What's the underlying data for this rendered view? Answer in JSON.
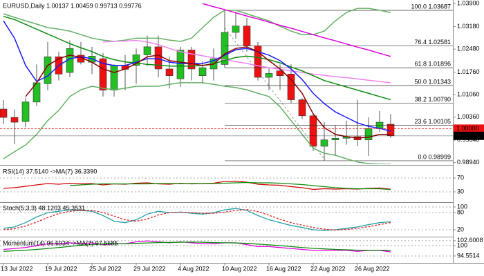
{
  "chart_data": [
    {
      "type": "candlestick",
      "title": "EURUSD,Daily  1.00137 1.00459 0.99713 0.99776",
      "categories": [
        "13 Jul 2022",
        null,
        null,
        null,
        "19 Jul 2022",
        null,
        null,
        null,
        "25 Jul 2022",
        null,
        null,
        null,
        "29 Jul 2022",
        null,
        null,
        null,
        "4 Aug 2022",
        null,
        null,
        null,
        "10 Aug 2022",
        null,
        null,
        null,
        "16 Aug 2022",
        null,
        null,
        null,
        "22 Aug 2022",
        null,
        null,
        null,
        "26 Aug 2022",
        null,
        null,
        null
      ],
      "open": [
        1.0061,
        1.0035,
        1.0022,
        1.0083,
        1.014,
        1.0224,
        1.0175,
        1.0229,
        1.0207,
        1.0218,
        1.012,
        1.0197,
        1.0197,
        1.023,
        1.0255,
        1.0186,
        1.0155,
        1.0245,
        1.0165,
        1.0186,
        1.02,
        1.03,
        1.032,
        1.0258,
        1.016,
        1.018,
        1.017,
        1.009,
        1.004,
        0.9945,
        0.9965,
        0.997,
        0.9975,
        0.9965,
        1.0,
        1.00137
      ],
      "high": [
        1.0089,
        1.006,
        1.0096,
        1.02,
        1.027,
        1.024,
        1.0275,
        1.027,
        1.0255,
        1.0235,
        1.02,
        1.023,
        1.025,
        1.029,
        1.029,
        1.0225,
        1.0255,
        1.0255,
        1.021,
        1.025,
        1.0368,
        1.0365,
        1.0345,
        1.027,
        1.019,
        1.02,
        1.02,
        1.0095,
        1.0045,
        1.002,
        1.001,
        1.0025,
        1.009,
        1.0035,
        1.0055,
        1.00459
      ],
      "low": [
        1.0014,
        0.9952,
        1.0005,
        1.007,
        1.012,
        1.015,
        1.016,
        1.02,
        1.017,
        1.01,
        1.01,
        1.012,
        1.014,
        1.0195,
        1.016,
        1.0125,
        1.013,
        1.015,
        1.014,
        1.015,
        1.019,
        1.028,
        1.024,
        1.015,
        1.012,
        1.012,
        1.008,
        1.003,
        0.993,
        0.99,
        0.9915,
        0.995,
        0.9945,
        0.9915,
        0.999,
        0.99713
      ],
      "close": [
        1.0035,
        1.002,
        1.0083,
        1.0143,
        1.0224,
        1.017,
        1.025,
        1.0207,
        1.0226,
        1.012,
        1.0197,
        1.0185,
        1.023,
        1.0255,
        1.0186,
        1.0165,
        1.0245,
        1.0186,
        1.019,
        1.0218,
        1.03,
        1.032,
        1.0258,
        1.016,
        1.0172,
        1.0165,
        1.009,
        1.004,
        0.9945,
        0.9965,
        0.997,
        0.9975,
        0.9965,
        1.0,
        1.002,
        0.99776
      ],
      "up_color": "#22c022",
      "down_color": "#ee1111",
      "series": [
        {
          "color": "#62b062",
          "values": [
            1.0358,
            1.0347,
            1.0336,
            1.0326,
            1.0315,
            1.031,
            1.0304,
            1.0293,
            1.0282,
            1.0276,
            1.0272,
            1.0276,
            1.0282,
            1.0282,
            1.0282,
            1.0276,
            1.0272,
            1.0282,
            1.0315,
            1.0347,
            1.0369,
            1.0369,
            1.0358,
            1.0347,
            1.0336,
            1.0319,
            1.0304,
            1.0293,
            1.0293,
            1.0304,
            1.0336,
            1.0362,
            1.0375,
            1.0375,
            1.0369,
            1.0362
          ]
        },
        {
          "color": "#62b062",
          "values": [
            0.9906,
            0.9928,
            0.9949,
            0.9982,
            1.0025,
            1.0057,
            1.01,
            1.0121,
            1.0132,
            1.0126,
            1.0121,
            1.0126,
            1.0132,
            1.0132,
            1.0132,
            1.0138,
            1.0143,
            1.0143,
            1.0143,
            1.0138,
            1.0132,
            1.0128,
            1.0121,
            1.011,
            1.01,
            1.0068,
            1.0025,
            0.9982,
            0.9939,
            0.9923,
            0.9917,
            0.9906,
            0.9896,
            0.9891,
            0.9889,
            0.9889
          ]
        },
        {
          "color": "#ee82ee",
          "values": [
            null,
            null,
            null,
            null,
            null,
            null,
            null,
            null,
            null,
            1.027,
            1.0272,
            1.0273,
            1.0275,
            1.027,
            1.0262,
            1.025,
            1.024,
            1.0233,
            1.0227,
            1.0221,
            1.0215,
            1.0209,
            1.0203,
            1.0196,
            1.019,
            1.0185,
            1.018,
            1.0175,
            1.017,
            1.0166,
            1.0162,
            1.0159,
            1.0155,
            1.0151,
            1.0147,
            1.0143
          ]
        },
        {
          "color": "#dd00dd",
          "values": [
            null,
            null,
            null,
            null,
            null,
            null,
            null,
            null,
            null,
            null,
            null,
            null,
            null,
            null,
            null,
            null,
            null,
            null,
            1.039,
            1.038,
            1.0371,
            1.0361,
            1.0351,
            1.0342,
            1.0332,
            1.0322,
            1.0313,
            1.0303,
            1.0293,
            1.0283,
            1.0274,
            1.0264,
            1.0254,
            1.0245,
            1.0235,
            1.0225
          ]
        },
        {
          "color": "#0b8a0b",
          "values": [
            1.035,
            1.034,
            1.0325,
            1.031,
            1.0295,
            1.028,
            1.0265,
            1.0252,
            1.024,
            1.0225,
            1.0215,
            1.0208,
            1.0205,
            1.02,
            1.0198,
            1.0195,
            1.0195,
            1.0195,
            1.0197,
            1.0203,
            1.0212,
            1.0222,
            1.0226,
            1.0222,
            1.0215,
            1.0205,
            1.0192,
            1.018,
            1.0165,
            1.015,
            1.014,
            1.013,
            1.012,
            1.011,
            1.01,
            1.009
          ]
        },
        {
          "color": "#1a1aff",
          "values": [
            1.0336,
            1.0282,
            1.0197,
            1.0147,
            1.0164,
            1.0197,
            1.0218,
            1.0224,
            1.0218,
            1.0203,
            1.0197,
            1.0197,
            1.0207,
            1.0218,
            1.0218,
            1.0207,
            1.0203,
            1.0203,
            1.0203,
            1.0212,
            1.0229,
            1.0246,
            1.025,
            1.024,
            1.0229,
            1.0212,
            1.0186,
            1.0153,
            1.011,
            1.0078,
            1.0052,
            1.0035,
            1.0018,
            1.0007,
            1.0001,
            0.9992
          ]
        },
        {
          "color": "#8b0000",
          "values": [
            null,
            null,
            1.01,
            1.0143,
            1.0197,
            1.0218,
            1.0229,
            1.0222,
            1.0207,
            1.0186,
            1.0175,
            1.0186,
            1.0203,
            1.0224,
            1.0229,
            1.0212,
            1.0207,
            1.0203,
            1.0197,
            1.0201,
            1.0233,
            1.025,
            1.0255,
            1.024,
            1.0212,
            1.0186,
            1.0153,
            1.011,
            1.0046,
            1.0003,
            0.9982,
            0.9975,
            0.9971,
            0.9973,
            0.9982,
            0.9982
          ]
        }
      ],
      "fib_levels": [
        {
          "value": 1.03687,
          "label": "100.0 1.03687"
        },
        {
          "value": 1.02581,
          "label": "76.4 1.02581"
        },
        {
          "value": 1.01896,
          "label": "61.8 1.01896"
        },
        {
          "value": 1.01343,
          "label": "50.0 1.01343"
        },
        {
          "value": 1.0079,
          "label": "38.2 1.00790"
        },
        {
          "value": 1.00105,
          "label": "23.6 1.00105"
        },
        {
          "value": 0.98999,
          "label": "0.0 0.98999"
        }
      ],
      "price_marks": [
        {
          "value": 1.0,
          "label": "1.00000",
          "color": "#ee1111"
        },
        {
          "value": 0.99776,
          "label": "0.99776",
          "color": "#000000"
        }
      ],
      "ylim": [
        0.9889,
        1.0401
      ],
      "yticks": [
        {
          "value": 1.039,
          "label": "1.03900"
        },
        {
          "value": 1.0318,
          "label": "1.03180"
        },
        {
          "value": 1.0248,
          "label": "1.02480"
        },
        {
          "value": 1.0176,
          "label": "1.01760"
        },
        {
          "value": 1.0106,
          "label": "1.01060"
        },
        {
          "value": 1.0036,
          "label": "1.00360"
        },
        {
          "value": 0.9964,
          "label": "0.99640"
        },
        {
          "value": 0.9894,
          "label": "0.98940"
        }
      ]
    },
    {
      "type": "line",
      "title": "RSI(14) 37.5140 ->MA(7) 36.3390",
      "ylim": [
        2,
        106
      ],
      "yticks": [
        70,
        30
      ],
      "series": [
        {
          "color": "#cc0000",
          "values": [
            40,
            42,
            46,
            50,
            54,
            52,
            55,
            53,
            54,
            50,
            53,
            52,
            55,
            56,
            53,
            52,
            55,
            53,
            54,
            55,
            60,
            61,
            58,
            52,
            50,
            49,
            45,
            42,
            37,
            39,
            38,
            39,
            38,
            40,
            41,
            37.5
          ]
        },
        {
          "color": "#0b8a0b",
          "values": [
            null,
            null,
            null,
            null,
            null,
            null,
            48,
            50,
            52,
            53,
            53,
            53,
            53,
            53,
            54,
            54,
            54,
            54,
            54,
            54,
            55,
            56,
            57,
            56,
            56,
            55,
            53,
            51,
            48,
            45,
            42,
            40,
            39,
            39,
            39,
            36.3
          ]
        }
      ]
    },
    {
      "type": "line",
      "title": "Stoch(5,3,3) 48.1203 45.3531",
      "ylim": [
        -1.8,
        114.5
      ],
      "yticks": [
        100,
        80,
        20
      ],
      "series": [
        {
          "color": "#20a0a8",
          "values": [
            25,
            30,
            45,
            65,
            80,
            85,
            90,
            88,
            85,
            70,
            50,
            45,
            55,
            75,
            85,
            80,
            82,
            78,
            75,
            80,
            90,
            95,
            88,
            70,
            55,
            45,
            35,
            28,
            20,
            18,
            20,
            25,
            30,
            38,
            45,
            48.12
          ]
        },
        {
          "color": "#dd2222",
          "dashed": true,
          "values": [
            20,
            24,
            33,
            47,
            63,
            77,
            85,
            88,
            88,
            81,
            68,
            55,
            50,
            58,
            72,
            80,
            82,
            80,
            78,
            78,
            82,
            88,
            91,
            84,
            71,
            57,
            45,
            36,
            28,
            22,
            19,
            21,
            25,
            31,
            38,
            45.35
          ]
        }
      ]
    },
    {
      "type": "line",
      "title": "Momentum(14) 96.6934 ->MA(7) 97.5685",
      "ylim": [
        91.27,
        104.36
      ],
      "yticks": [
        102.6008,
        100,
        94.5514
      ],
      "series": [
        {
          "color": "#dd00dd",
          "values": [
            98,
            98.5,
            99,
            100,
            101,
            101,
            101.5,
            101,
            101.5,
            100.5,
            101,
            101,
            102,
            102.5,
            102,
            101.5,
            102,
            101.5,
            101,
            101,
            101.5,
            101.5,
            100.5,
            99.5,
            99.5,
            99,
            98.5,
            98,
            97.5,
            97.5,
            97.5,
            97.5,
            97,
            97.5,
            97.5,
            96.69
          ]
        },
        {
          "color": "#0b8a0b",
          "values": [
            97,
            97.3,
            97.6,
            98,
            98.5,
            99,
            99.6,
            100.2,
            100.6,
            100.9,
            101,
            101,
            101.2,
            101.4,
            101.6,
            101.7,
            101.8,
            101.9,
            101.8,
            101.6,
            101.5,
            101.4,
            101.2,
            100.8,
            100.4,
            100,
            99.5,
            99,
            98.6,
            98.3,
            98,
            97.8,
            97.6,
            97.6,
            97.6,
            97.57
          ]
        }
      ]
    }
  ]
}
